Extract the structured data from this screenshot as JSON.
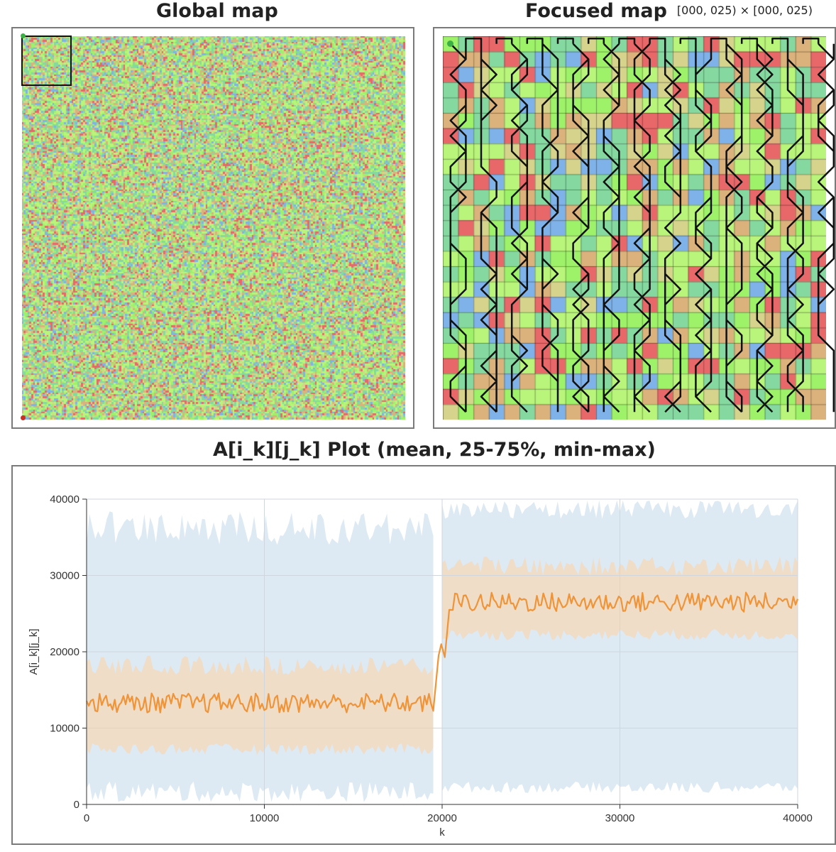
{
  "global_map": {
    "title": "Global map",
    "grid_size": 200,
    "focus_window_cells": 25
  },
  "focused_map": {
    "title": "Focused map",
    "range_label": "[000, 025) × [000, 025)",
    "grid_size": 25
  },
  "palette": [
    "#e8686a",
    "#b9f57a",
    "#85d9a0",
    "#dcb27c",
    "#7fb2e8",
    "#9ef26a",
    "#d6d48c"
  ],
  "start_marker_color": "#3cb044",
  "end_marker_color": "#c83226",
  "chart_data": {
    "type": "area",
    "title": "A[i_k][j_k] Plot (mean, 25-75%, min-max)",
    "xlabel": "k",
    "ylabel": "A[i_k][j_k]",
    "xlim": [
      0,
      40000
    ],
    "ylim": [
      0,
      40000
    ],
    "x_ticks": [
      0,
      10000,
      20000,
      30000,
      40000
    ],
    "y_ticks": [
      0,
      10000,
      20000,
      30000,
      40000
    ],
    "grid": true,
    "colors": {
      "minmax": "#dde9f3",
      "iqr": "#f0ddc8",
      "mean": "#ef9438"
    },
    "series": [
      {
        "name": "min-max",
        "segments": [
          {
            "x_range": [
              0,
              19500
            ],
            "low": 300,
            "high": 38500
          },
          {
            "x_range": [
              20000,
              40000
            ],
            "low": 1500,
            "high": 39900
          }
        ]
      },
      {
        "name": "25-75%",
        "segments": [
          {
            "x_range": [
              0,
              19500
            ],
            "low": 6500,
            "high": 19500
          },
          {
            "x_range": [
              20000,
              40000
            ],
            "low": 21500,
            "high": 32500
          }
        ]
      },
      {
        "name": "mean",
        "segments": [
          {
            "x_range": [
              0,
              19500
            ],
            "value": 13300
          },
          {
            "x_range": [
              20000,
              40000
            ],
            "value": 26500
          }
        ]
      }
    ]
  }
}
